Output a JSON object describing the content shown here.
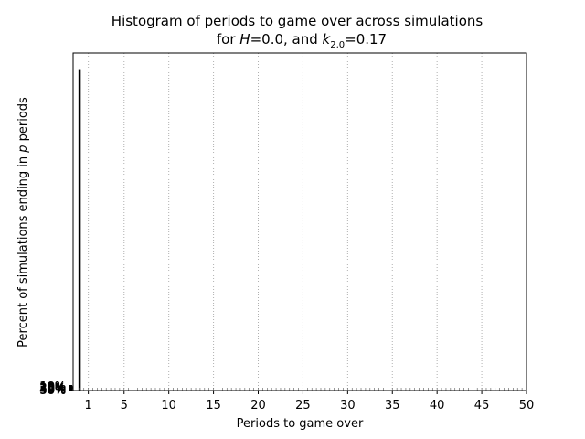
{
  "chart_data": {
    "type": "bar",
    "title_line1": "Histogram of periods to game over across simulations",
    "title_line2": {
      "pre": "for ",
      "h_symbol": "H",
      "h_value": "=0.0, and ",
      "k_symbol": "k",
      "k_subscript": "2,0",
      "k_value": "=0.17"
    },
    "xlabel": "Periods to game over",
    "ylabel": {
      "pre": "Percent of simulations ending in ",
      "symbol": "p",
      "post": " periods"
    },
    "x_ticks": [
      1,
      5,
      10,
      15,
      20,
      25,
      30,
      35,
      40,
      45,
      50
    ],
    "x_tick_labels": [
      "1",
      "5",
      "10",
      "15",
      "20",
      "25",
      "30",
      "35",
      "40",
      "45",
      "50"
    ],
    "xlim": [
      -0.7,
      50
    ],
    "ylim": [
      0,
      1.05
    ],
    "y_tick_labels": [
      "50%",
      "40%",
      "30%",
      "20%",
      "10%"
    ],
    "grid_x": true,
    "bars": [
      {
        "x": 0,
        "value": 1.0
      }
    ],
    "colors": {
      "bar": "#000000",
      "grid": "#b0b0b0",
      "axes": "#000000"
    }
  }
}
